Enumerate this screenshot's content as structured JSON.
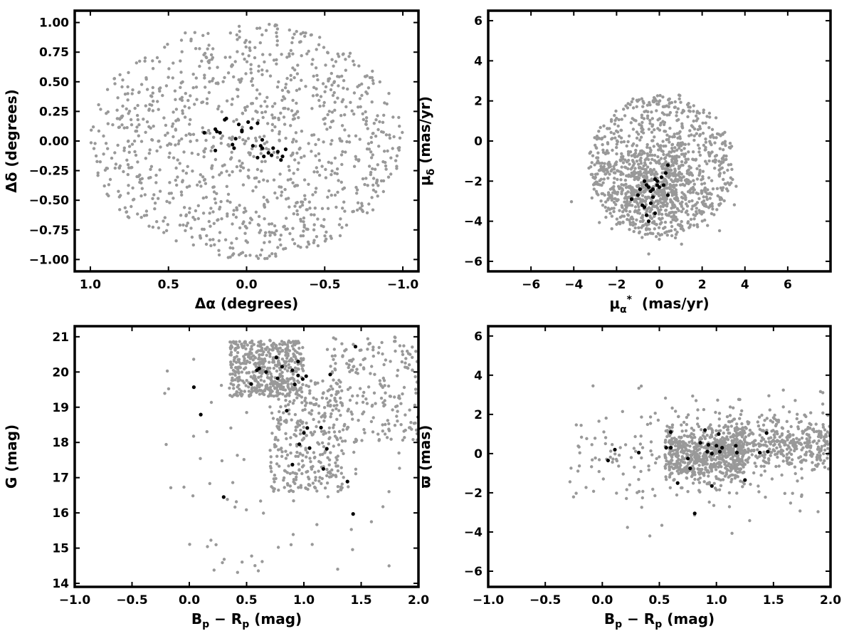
{
  "colors": {
    "field": "#999999",
    "members": "#000000",
    "axes": "#000000"
  },
  "chart_data": [
    {
      "type": "scatter",
      "title": "",
      "xlabel": "Δα (degrees)",
      "ylabel": "Δδ (degrees)",
      "xlim": [
        1.1,
        -1.1
      ],
      "ylim": [
        -1.1,
        1.1
      ],
      "x_inverted": true,
      "xticks": [
        1.0,
        0.5,
        0.0,
        -0.5,
        -1.0
      ],
      "xtick_labels": [
        "1.0",
        "0.5",
        "0.0",
        "−0.5",
        "−1.0"
      ],
      "yticks": [
        -1.0,
        -0.75,
        -0.5,
        -0.25,
        0.0,
        0.25,
        0.5,
        0.75,
        1.0
      ],
      "ytick_labels": [
        "−1.00",
        "−0.75",
        "−0.50",
        "−0.25",
        "0.00",
        "0.25",
        "0.50",
        "0.75",
        "1.00"
      ],
      "grid": false,
      "series": [
        {
          "role": "field",
          "color": "#999999",
          "generated": {
            "shape": "disk",
            "n": 1100,
            "seed": 11,
            "cx": 0.0,
            "cy": 0.0,
            "rx": 1.0,
            "ry": 1.0
          }
        },
        {
          "role": "members",
          "color": "#000000",
          "points": [
            [
              0.27,
              0.07
            ],
            [
              0.2,
              0.1
            ],
            [
              0.19,
              0.08
            ],
            [
              0.17,
              0.07
            ],
            [
              0.14,
              0.18
            ],
            [
              0.13,
              0.19
            ],
            [
              0.2,
              -0.08
            ],
            [
              0.09,
              -0.03
            ],
            [
              0.08,
              -0.06
            ],
            [
              0.07,
              0.02
            ],
            [
              0.05,
              0.14
            ],
            [
              0.03,
              0.09
            ],
            [
              0.03,
              0.08
            ],
            [
              -0.01,
              0.16
            ],
            [
              -0.04,
              -0.04
            ],
            [
              -0.03,
              0.11
            ],
            [
              -0.07,
              -0.14
            ],
            [
              -0.07,
              0.15
            ],
            [
              -0.09,
              -0.04
            ],
            [
              -0.1,
              -0.06
            ],
            [
              -0.1,
              0.01
            ],
            [
              -0.11,
              -0.13
            ],
            [
              -0.14,
              -0.1
            ],
            [
              -0.16,
              -0.12
            ],
            [
              -0.17,
              -0.06
            ],
            [
              -0.2,
              -0.09
            ],
            [
              -0.22,
              -0.16
            ],
            [
              -0.23,
              -0.13
            ],
            [
              -0.25,
              -0.07
            ]
          ]
        }
      ]
    },
    {
      "type": "scatter",
      "title": "",
      "xlabel": "μα* (mas/yr)",
      "ylabel": "μδ (mas/yr)",
      "xlim": [
        -8,
        8
      ],
      "ylim": [
        -6.5,
        6.5
      ],
      "xticks": [
        -6,
        -4,
        -2,
        0,
        2,
        4,
        6
      ],
      "xtick_labels": [
        "−6",
        "−4",
        "−2",
        "0",
        "2",
        "4",
        "6"
      ],
      "yticks": [
        -6,
        -4,
        -2,
        0,
        2,
        4,
        6
      ],
      "ytick_labels": [
        "−6",
        "−4",
        "−2",
        "0",
        "2",
        "4",
        "6"
      ],
      "grid": false,
      "series": [
        {
          "role": "field",
          "color": "#999999",
          "generated": {
            "shape": "disk+cluster",
            "n": 1300,
            "seed": 23,
            "cx": 0.1,
            "cy": -1.2,
            "rx": 3.4,
            "ry": 3.6,
            "cluster": {
              "cx": -0.3,
              "cy": -2.5,
              "sx": 1.2,
              "sy": 1.0,
              "frac": 0.35
            }
          }
        },
        {
          "role": "members",
          "color": "#000000",
          "points": [
            [
              -1.3,
              -2.9
            ],
            [
              -1.0,
              -2.7
            ],
            [
              -0.9,
              -2.4
            ],
            [
              -0.8,
              -3.2
            ],
            [
              -0.7,
              -3.3
            ],
            [
              -0.7,
              -2.0
            ],
            [
              -0.6,
              -2.2
            ],
            [
              -0.6,
              -3.7
            ],
            [
              -0.5,
              -4.0
            ],
            [
              -0.5,
              -2.3
            ],
            [
              -0.4,
              -3.1
            ],
            [
              -0.4,
              -2.5
            ],
            [
              -0.3,
              -2.4
            ],
            [
              -0.3,
              -2.8
            ],
            [
              -0.2,
              -1.9
            ],
            [
              -0.2,
              -3.6
            ],
            [
              -0.1,
              -2.0
            ],
            [
              -0.1,
              -2.2
            ],
            [
              0.0,
              -2.3
            ],
            [
              0.1,
              -1.8
            ],
            [
              0.2,
              -2.2
            ],
            [
              0.3,
              -1.6
            ],
            [
              0.4,
              -1.2
            ],
            [
              0.4,
              -2.7
            ]
          ]
        }
      ]
    },
    {
      "type": "scatter",
      "title": "",
      "xlabel": "Bp − Rp (mag)",
      "ylabel": "G (mag)",
      "xlim": [
        -1.0,
        2.0
      ],
      "ylim": [
        13.9,
        21.3
      ],
      "xticks": [
        -1.0,
        -0.5,
        0.0,
        0.5,
        1.0,
        1.5,
        2.0
      ],
      "xtick_labels": [
        "−1.0",
        "−0.5",
        "0.0",
        "0.5",
        "1.0",
        "1.5",
        "2.0"
      ],
      "yticks": [
        14,
        15,
        16,
        17,
        18,
        19,
        20,
        21
      ],
      "ytick_labels": [
        "14",
        "15",
        "16",
        "17",
        "18",
        "19",
        "20",
        "21"
      ],
      "grid": false,
      "series": [
        {
          "role": "field",
          "color": "#999999",
          "generated": {
            "shape": "cmd",
            "n": 1100,
            "seed": 37
          }
        },
        {
          "role": "members",
          "color": "#000000",
          "points": [
            [
              0.04,
              19.57
            ],
            [
              0.1,
              18.79
            ],
            [
              0.3,
              16.45
            ],
            [
              0.54,
              19.66
            ],
            [
              0.59,
              20.05
            ],
            [
              0.61,
              20.1
            ],
            [
              0.67,
              20.0
            ],
            [
              0.76,
              20.41
            ],
            [
              0.77,
              19.82
            ],
            [
              0.81,
              20.15
            ],
            [
              0.85,
              18.9
            ],
            [
              0.9,
              20.05
            ],
            [
              0.9,
              17.37
            ],
            [
              0.92,
              19.65
            ],
            [
              0.95,
              20.3
            ],
            [
              0.95,
              19.9
            ],
            [
              0.96,
              17.95
            ],
            [
              0.99,
              19.8
            ],
            [
              1.0,
              18.27
            ],
            [
              1.02,
              19.88
            ],
            [
              1.03,
              18.41
            ],
            [
              1.05,
              17.84
            ],
            [
              1.15,
              18.42
            ],
            [
              1.17,
              17.25
            ],
            [
              1.2,
              17.82
            ],
            [
              1.23,
              19.93
            ],
            [
              1.38,
              16.89
            ],
            [
              1.43,
              15.97
            ],
            [
              1.45,
              20.72
            ],
            [
              2.0,
              18.72
            ]
          ]
        }
      ]
    },
    {
      "type": "scatter",
      "title": "",
      "xlabel": "Bp − Rp (mag)",
      "ylabel": "ϖ (mas)",
      "xlim": [
        -1.0,
        2.0
      ],
      "ylim": [
        -6.8,
        6.5
      ],
      "xticks": [
        -1.0,
        -0.5,
        0.0,
        0.5,
        1.0,
        1.5,
        2.0
      ],
      "xtick_labels": [
        "−1.0",
        "−0.5",
        "0.0",
        "0.5",
        "1.0",
        "1.5",
        "2.0"
      ],
      "yticks": [
        -6,
        -4,
        -2,
        0,
        2,
        4,
        6
      ],
      "ytick_labels": [
        "−6",
        "−4",
        "−2",
        "0",
        "2",
        "4",
        "6"
      ],
      "grid": false,
      "series": [
        {
          "role": "field",
          "color": "#999999",
          "generated": {
            "shape": "parallax",
            "n": 1200,
            "seed": 51
          }
        },
        {
          "role": "members",
          "color": "#000000",
          "points": [
            [
              0.05,
              -0.35
            ],
            [
              0.11,
              0.2
            ],
            [
              0.32,
              0.05
            ],
            [
              0.56,
              0.3
            ],
            [
              0.6,
              1.1
            ],
            [
              0.6,
              0.3
            ],
            [
              0.66,
              -1.5
            ],
            [
              0.75,
              -0.25
            ],
            [
              0.77,
              -0.75
            ],
            [
              0.81,
              -3.05
            ],
            [
              0.86,
              0.55
            ],
            [
              0.9,
              1.2
            ],
            [
              0.92,
              0.1
            ],
            [
              0.93,
              0.45
            ],
            [
              0.96,
              -1.65
            ],
            [
              0.96,
              0.0
            ],
            [
              1.0,
              0.4
            ],
            [
              1.02,
              1.0
            ],
            [
              1.03,
              0.1
            ],
            [
              1.05,
              0.3
            ],
            [
              1.17,
              0.4
            ],
            [
              1.18,
              0.05
            ],
            [
              1.25,
              -1.35
            ],
            [
              1.38,
              0.05
            ],
            [
              1.44,
              1.05
            ],
            [
              1.45,
              0.1
            ],
            [
              2.0,
              0.9
            ]
          ]
        }
      ]
    }
  ]
}
